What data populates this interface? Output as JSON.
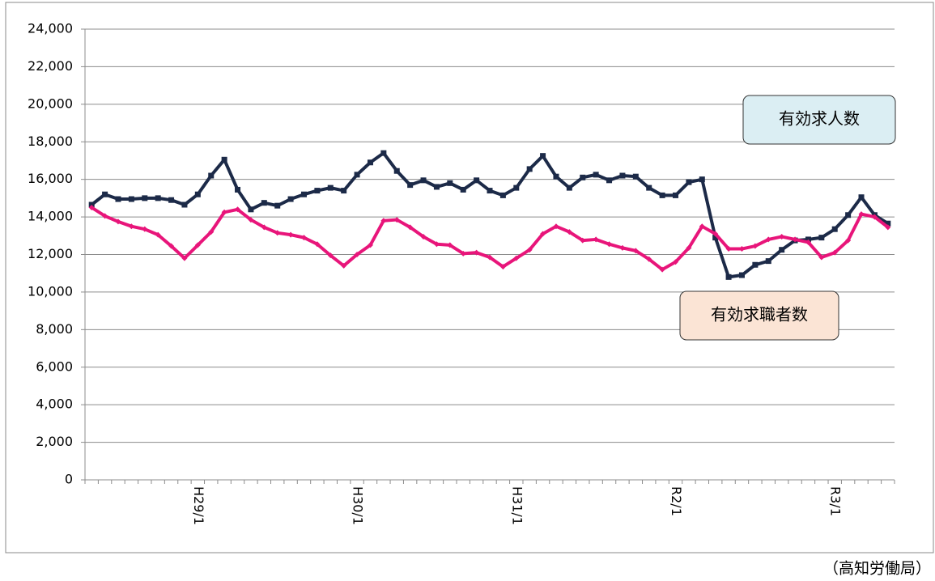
{
  "chart_data": {
    "type": "line",
    "categories": [
      null,
      null,
      null,
      null,
      null,
      null,
      null,
      null,
      "H29/1",
      null,
      null,
      null,
      null,
      null,
      null,
      null,
      null,
      null,
      null,
      null,
      "H30/1",
      null,
      null,
      null,
      null,
      null,
      null,
      null,
      null,
      null,
      null,
      null,
      "H31/1",
      null,
      null,
      null,
      null,
      null,
      null,
      null,
      null,
      null,
      null,
      null,
      "R2/1",
      null,
      null,
      null,
      null,
      null,
      null,
      null,
      null,
      null,
      null,
      null,
      "R3/1",
      null,
      null,
      null,
      null
    ],
    "series": [
      {
        "name": "有効求人数",
        "color": "#1c2a48",
        "marker": "square",
        "values": [
          14650,
          15200,
          14950,
          14950,
          15000,
          15000,
          14900,
          14650,
          15200,
          16200,
          17050,
          15450,
          14400,
          14750,
          14600,
          14950,
          15200,
          15400,
          15550,
          15400,
          16250,
          16900,
          17400,
          16450,
          15700,
          15950,
          15600,
          15800,
          15450,
          15950,
          15400,
          15150,
          15550,
          16550,
          17250,
          16150,
          15550,
          16100,
          16250,
          15950,
          16200,
          16150,
          15550,
          15150,
          15150,
          15850,
          16000,
          12900,
          10800,
          10900,
          11450,
          11650,
          12250,
          12750,
          12800,
          12900,
          13350,
          14100,
          15050,
          14100,
          13650
        ]
      },
      {
        "name": "有効求職者数",
        "color": "#e8157a",
        "marker": "diamond",
        "values": [
          14500,
          14050,
          13750,
          13500,
          13350,
          13050,
          12450,
          11800,
          12500,
          13200,
          14250,
          14400,
          13850,
          13450,
          13150,
          13050,
          12900,
          12550,
          11950,
          11400,
          12000,
          12500,
          13800,
          13850,
          13450,
          12950,
          12550,
          12500,
          12050,
          12100,
          11850,
          11350,
          11800,
          12250,
          13100,
          13500,
          13200,
          12750,
          12800,
          12550,
          12350,
          12200,
          11750,
          11200,
          11600,
          12350,
          13500,
          13100,
          12300,
          12300,
          12450,
          12800,
          12950,
          12800,
          12650,
          11850,
          12100,
          12750,
          14150,
          14000,
          13450
        ]
      }
    ],
    "ylim": [
      0,
      24000
    ],
    "yticks": [
      0,
      {
        "value": 2000,
        "label": "2,000"
      },
      {
        "value": 4000,
        "label": "4,000"
      },
      {
        "value": 6000,
        "label": "6,000"
      },
      {
        "value": 8000,
        "label": "8,000"
      },
      {
        "value": 10000,
        "label": "10,000"
      },
      {
        "value": 12000,
        "label": "12,000"
      },
      {
        "value": 14000,
        "label": "14,000"
      },
      {
        "value": 16000,
        "label": "16,000"
      },
      {
        "value": 18000,
        "label": "18,000"
      },
      {
        "value": 20000,
        "label": "20,000"
      },
      {
        "value": 22000,
        "label": "22,000"
      },
      {
        "value": 24000,
        "label": "24,000"
      }
    ],
    "grid": true,
    "legend_boxes": [
      {
        "series": 0,
        "fill": "#dbeef3"
      },
      {
        "series": 1,
        "fill": "#fbe4d5"
      }
    ],
    "source": "（高知労働局）"
  }
}
